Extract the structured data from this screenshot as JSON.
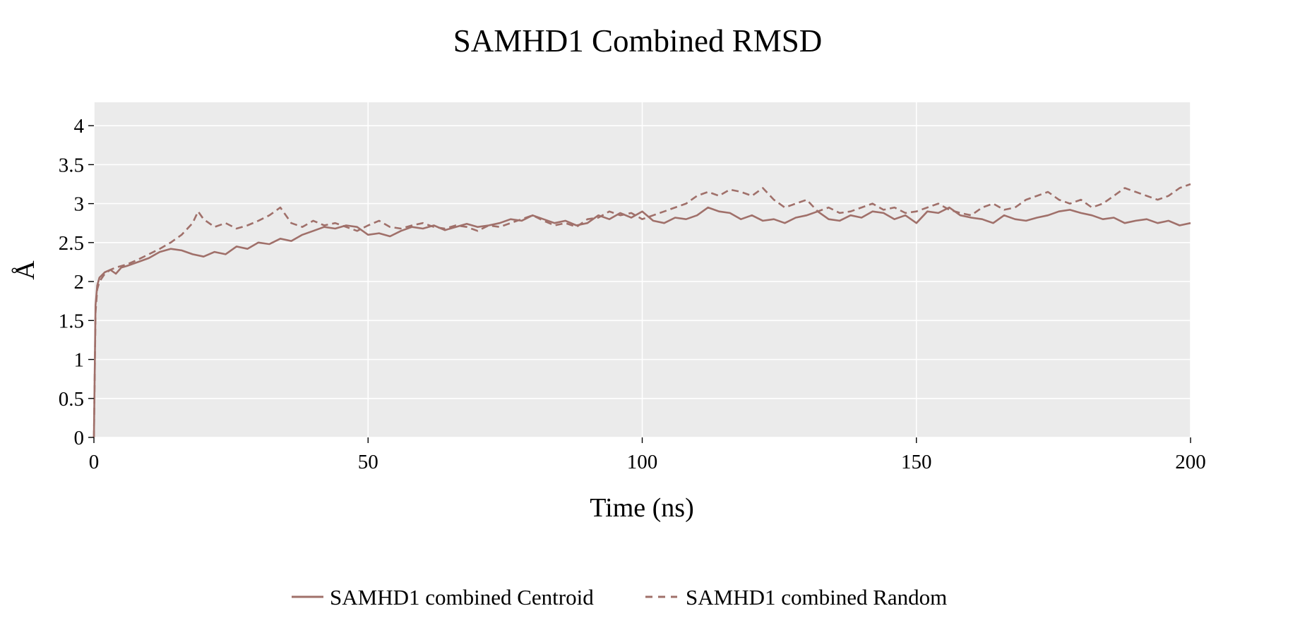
{
  "chart_data": {
    "type": "line",
    "title": "SAMHD1 Combined RMSD",
    "xlabel": "Time (ns)",
    "ylabel": "Å",
    "xlim": [
      0,
      200
    ],
    "ylim": [
      0,
      4.3
    ],
    "xticks": [
      0,
      50,
      100,
      150,
      200
    ],
    "xtick_labels": [
      "0",
      "50",
      "100",
      "150",
      "200"
    ],
    "yticks": [
      0,
      0.5,
      1,
      1.5,
      2,
      2.5,
      3,
      3.5,
      4
    ],
    "ytick_labels": [
      "0",
      "0.5",
      "1",
      "1.5",
      "2",
      "2.5",
      "3",
      "3.5",
      "4"
    ],
    "grid": true,
    "legend_position": "bottom-center",
    "background_color": "#ebebeb",
    "grid_color": "#ffffff",
    "series": [
      {
        "name": "SAMHD1 combined Centroid",
        "color": "#a0706a",
        "line_style": "solid",
        "x": [
          0,
          0.3,
          0.6,
          1,
          2,
          3,
          4,
          5,
          6,
          8,
          10,
          12,
          14,
          16,
          18,
          20,
          22,
          24,
          26,
          28,
          30,
          32,
          34,
          36,
          38,
          40,
          42,
          44,
          46,
          48,
          50,
          52,
          54,
          56,
          58,
          60,
          62,
          64,
          66,
          68,
          70,
          72,
          74,
          76,
          78,
          80,
          82,
          84,
          86,
          88,
          90,
          92,
          94,
          96,
          98,
          100,
          102,
          104,
          106,
          108,
          110,
          112,
          114,
          116,
          118,
          120,
          122,
          124,
          126,
          128,
          130,
          132,
          134,
          136,
          138,
          140,
          142,
          144,
          146,
          148,
          150,
          152,
          154,
          156,
          158,
          160,
          162,
          164,
          166,
          168,
          170,
          172,
          174,
          176,
          178,
          180,
          182,
          184,
          186,
          188,
          190,
          192,
          194,
          196,
          198,
          200
        ],
        "y": [
          0.0,
          1.7,
          1.95,
          2.05,
          2.12,
          2.15,
          2.1,
          2.18,
          2.2,
          2.25,
          2.3,
          2.38,
          2.42,
          2.4,
          2.35,
          2.32,
          2.38,
          2.35,
          2.45,
          2.42,
          2.5,
          2.48,
          2.55,
          2.52,
          2.6,
          2.65,
          2.7,
          2.68,
          2.72,
          2.7,
          2.6,
          2.62,
          2.58,
          2.65,
          2.7,
          2.68,
          2.72,
          2.66,
          2.7,
          2.74,
          2.7,
          2.72,
          2.75,
          2.8,
          2.78,
          2.85,
          2.8,
          2.75,
          2.78,
          2.72,
          2.75,
          2.85,
          2.8,
          2.88,
          2.82,
          2.9,
          2.78,
          2.75,
          2.82,
          2.8,
          2.85,
          2.95,
          2.9,
          2.88,
          2.8,
          2.85,
          2.78,
          2.8,
          2.75,
          2.82,
          2.85,
          2.9,
          2.8,
          2.78,
          2.85,
          2.82,
          2.9,
          2.88,
          2.8,
          2.85,
          2.75,
          2.9,
          2.88,
          2.95,
          2.85,
          2.82,
          2.8,
          2.75,
          2.85,
          2.8,
          2.78,
          2.82,
          2.85,
          2.9,
          2.92,
          2.88,
          2.85,
          2.8,
          2.82,
          2.75,
          2.78,
          2.8,
          2.75,
          2.78,
          2.72,
          2.75
        ]
      },
      {
        "name": "SAMHD1 combined Random",
        "color": "#a0706a",
        "line_style": "dashed",
        "x": [
          0,
          0.3,
          0.6,
          1,
          2,
          3,
          4,
          5,
          6,
          8,
          10,
          12,
          14,
          16,
          18,
          19,
          20,
          22,
          24,
          26,
          28,
          30,
          32,
          34,
          36,
          38,
          40,
          42,
          44,
          46,
          48,
          50,
          52,
          54,
          56,
          58,
          60,
          62,
          64,
          66,
          68,
          70,
          72,
          74,
          76,
          78,
          80,
          82,
          84,
          86,
          88,
          90,
          92,
          94,
          96,
          98,
          100,
          102,
          104,
          106,
          108,
          110,
          112,
          114,
          116,
          118,
          120,
          122,
          124,
          126,
          128,
          130,
          132,
          134,
          136,
          138,
          140,
          142,
          144,
          146,
          148,
          150,
          152,
          154,
          156,
          158,
          160,
          162,
          164,
          166,
          168,
          170,
          172,
          174,
          176,
          178,
          180,
          182,
          184,
          186,
          188,
          190,
          192,
          194,
          196,
          198,
          200
        ],
        "y": [
          0.0,
          1.6,
          1.9,
          2.0,
          2.1,
          2.15,
          2.18,
          2.2,
          2.22,
          2.28,
          2.35,
          2.42,
          2.5,
          2.6,
          2.75,
          2.9,
          2.8,
          2.7,
          2.75,
          2.68,
          2.72,
          2.78,
          2.85,
          2.95,
          2.75,
          2.7,
          2.78,
          2.72,
          2.75,
          2.7,
          2.65,
          2.72,
          2.78,
          2.7,
          2.68,
          2.72,
          2.75,
          2.7,
          2.68,
          2.72,
          2.7,
          2.65,
          2.72,
          2.7,
          2.75,
          2.8,
          2.85,
          2.78,
          2.72,
          2.75,
          2.7,
          2.8,
          2.82,
          2.9,
          2.85,
          2.88,
          2.8,
          2.85,
          2.9,
          2.95,
          3.0,
          3.1,
          3.15,
          3.1,
          3.18,
          3.15,
          3.1,
          3.2,
          3.05,
          2.95,
          3.0,
          3.05,
          2.9,
          2.95,
          2.88,
          2.9,
          2.95,
          3.0,
          2.92,
          2.95,
          2.88,
          2.9,
          2.95,
          3.0,
          2.92,
          2.88,
          2.85,
          2.95,
          3.0,
          2.92,
          2.95,
          3.05,
          3.1,
          3.15,
          3.05,
          3.0,
          3.05,
          2.95,
          3.0,
          3.1,
          3.2,
          3.15,
          3.1,
          3.05,
          3.1,
          3.2,
          3.25
        ]
      }
    ]
  }
}
